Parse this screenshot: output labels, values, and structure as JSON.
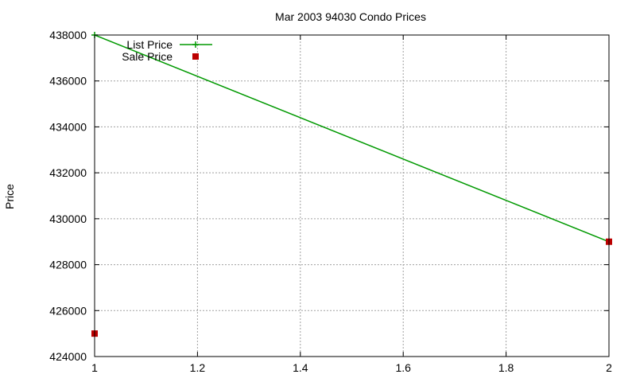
{
  "chart_data": {
    "type": "line",
    "title": "Mar 2003 94030 Condo Prices",
    "xlabel": "",
    "ylabel": "Price",
    "xlim": [
      1,
      2
    ],
    "ylim": [
      424000,
      438000
    ],
    "x_ticks": [
      1,
      1.2,
      1.4,
      1.6,
      1.8,
      2
    ],
    "x_tick_labels": [
      "1",
      "1.2",
      "1.4",
      "1.6",
      "1.8",
      "2"
    ],
    "y_ticks": [
      424000,
      426000,
      428000,
      430000,
      432000,
      434000,
      436000,
      438000
    ],
    "y_tick_labels": [
      "424000",
      "426000",
      "428000",
      "430000",
      "432000",
      "434000",
      "436000",
      "438000"
    ],
    "grid": true,
    "legend_position": "top-left",
    "series": [
      {
        "name": "List Price",
        "style": "line+cross",
        "color": "#009900",
        "points": [
          {
            "x": 1,
            "y": 438000
          },
          {
            "x": 2,
            "y": 429000
          }
        ]
      },
      {
        "name": "Sale Price",
        "style": "filled-square",
        "color": "#bb0000",
        "points": [
          {
            "x": 1,
            "y": 425000
          },
          {
            "x": 2,
            "y": 429000
          }
        ]
      }
    ]
  }
}
